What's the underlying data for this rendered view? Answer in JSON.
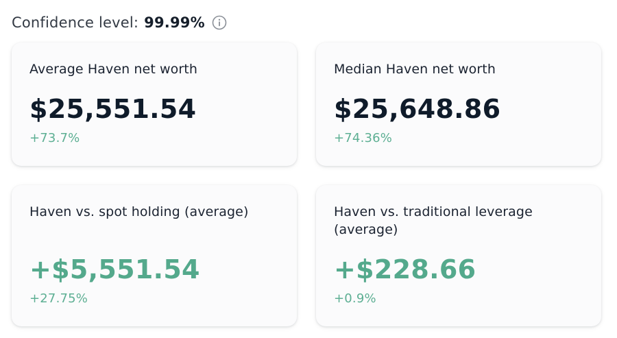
{
  "header": {
    "label": "Confidence level:",
    "value": "99.99%",
    "info_icon": "info-icon"
  },
  "colors": {
    "positive": "#54a98c",
    "text_primary": "#0f1b2a",
    "card_background": "#fbfbfc"
  },
  "cards": [
    {
      "title": "Average Haven net worth",
      "value": "$25,551.54",
      "change": "+73.7%"
    },
    {
      "title": "Median Haven net worth",
      "value": "$25,648.86",
      "change": "+74.36%"
    },
    {
      "title": "Haven vs. spot holding (average)",
      "value": "+$5,551.54",
      "change": "+27.75%"
    },
    {
      "title": "Haven vs. traditional leverage (average)",
      "value": "+$228.66",
      "change": "+0.9%"
    }
  ]
}
